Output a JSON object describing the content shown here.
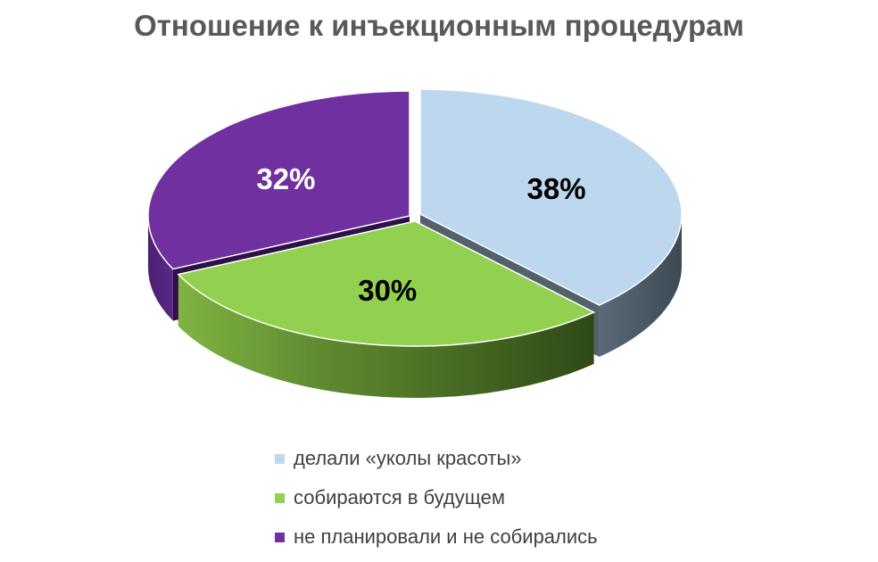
{
  "chart_data": {
    "type": "pie",
    "title": "Отношение к инъекционным процедурам",
    "categories": [
      "делали «уколы красоты»",
      "собираются в будущем",
      "не планировали и не собирались"
    ],
    "values": [
      38,
      30,
      32
    ],
    "data_labels": [
      "38%",
      "30%",
      "32%"
    ],
    "colors": [
      "#bdd7ee",
      "#92d050",
      "#7030a0"
    ],
    "label_colors": [
      "#000000",
      "#000000",
      "#ffffff"
    ],
    "legend_position": "bottom",
    "three_d": true
  }
}
